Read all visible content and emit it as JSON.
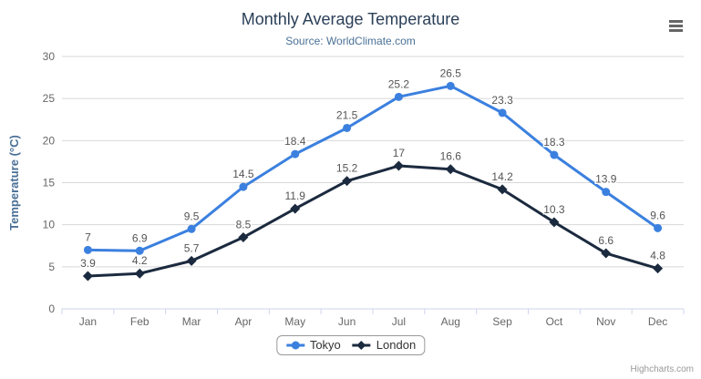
{
  "chart": {
    "title": "Monthly Average Temperature",
    "subtitle": "Source: WorldClimate.com",
    "credits": "Highcharts.com",
    "context_menu_icon": "hamburger-icon"
  },
  "chart_data": {
    "type": "line",
    "title": "Monthly Average Temperature",
    "subtitle": "Source: WorldClimate.com",
    "categories": [
      "Jan",
      "Feb",
      "Mar",
      "Apr",
      "May",
      "Jun",
      "Jul",
      "Aug",
      "Sep",
      "Oct",
      "Nov",
      "Dec"
    ],
    "series": [
      {
        "name": "Tokyo",
        "color": "#3b80df",
        "marker": "circle",
        "values": [
          7,
          6.9,
          9.5,
          14.5,
          18.4,
          21.5,
          25.2,
          26.5,
          23.3,
          18.3,
          13.9,
          9.6
        ]
      },
      {
        "name": "London",
        "color": "#1b2a3e",
        "marker": "diamond",
        "values": [
          3.9,
          4.2,
          5.7,
          8.5,
          11.9,
          15.2,
          17,
          16.6,
          14.2,
          10.3,
          6.6,
          4.8
        ]
      }
    ],
    "xlabel": "",
    "ylabel": "Temperature (°C)",
    "ylim": [
      0,
      30
    ],
    "yticks": [
      0,
      5,
      10,
      15,
      20,
      25,
      30
    ],
    "grid": true,
    "data_labels": true,
    "legend_position": "bottom-center"
  },
  "colors": {
    "title": "#2b3f58",
    "subtitle": "#4a7096",
    "axis_title": "#4a7096",
    "axis_label": "#666666",
    "data_label": "#555555",
    "grid_line": "#d8d8d8",
    "axis_line": "#ccd6eb",
    "legend_border": "#999999",
    "legend_text": "#333333",
    "credits_text": "#999999",
    "menu_icon": "#666666",
    "background": "#ffffff"
  }
}
